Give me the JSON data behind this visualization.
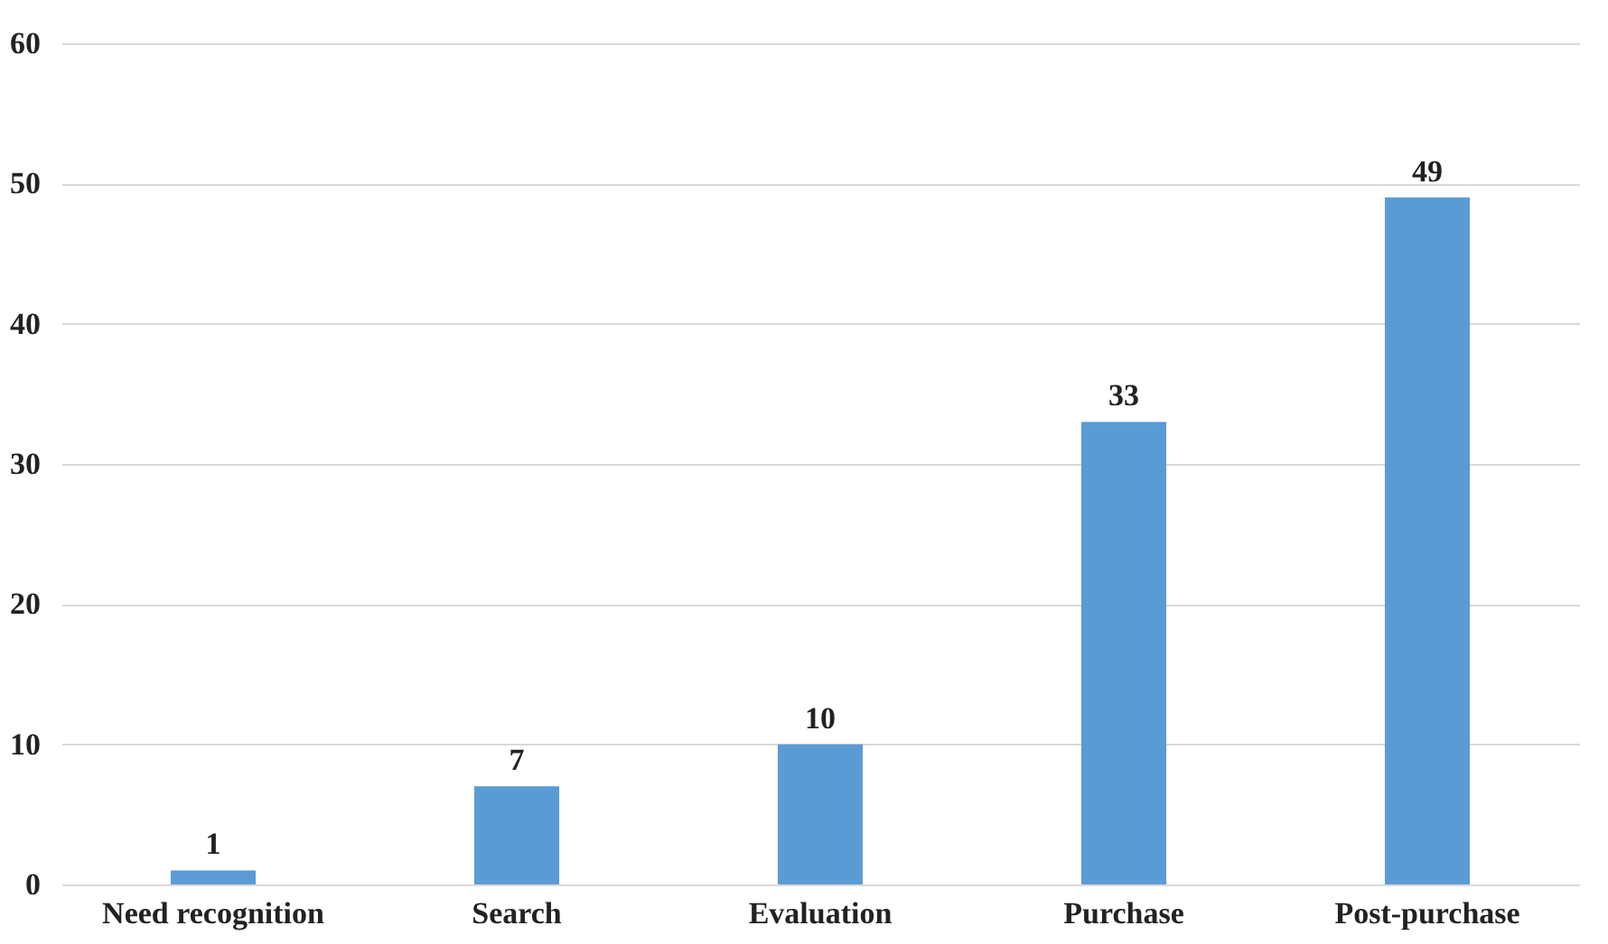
{
  "chart_data": {
    "type": "bar",
    "categories": [
      "Need recognition",
      "Search",
      "Evaluation",
      "Purchase",
      "Post-purchase"
    ],
    "values": [
      1,
      7,
      10,
      33,
      49
    ],
    "color": "#5b9bd5",
    "ylim": [
      0,
      60
    ],
    "yticks": [
      0,
      10,
      20,
      30,
      40,
      50,
      60
    ],
    "grid": "y",
    "data_labels": true
  }
}
